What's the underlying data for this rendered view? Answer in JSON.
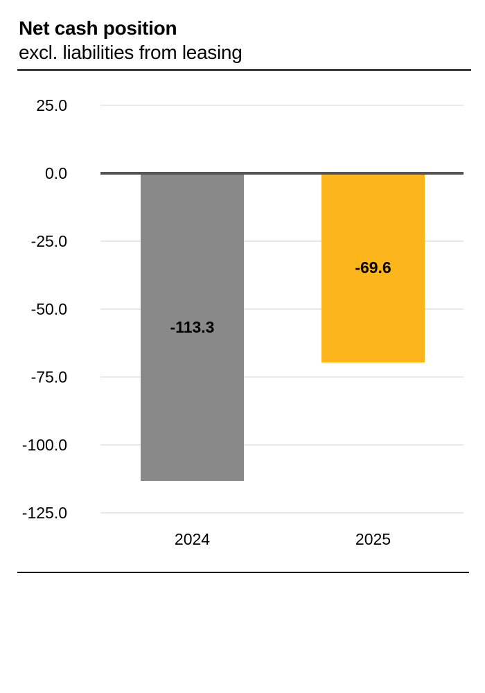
{
  "header": {
    "title": "Net cash position",
    "subtitle": "excl. liabilities from leasing"
  },
  "chart_data": {
    "type": "bar",
    "title": "Net cash position",
    "subtitle": "excl. liabilities from leasing",
    "categories": [
      "2024",
      "2025"
    ],
    "series": [
      {
        "name": "Net cash position",
        "values": [
          -113.3,
          -69.6
        ]
      }
    ],
    "data_labels": [
      "-113.3",
      "-69.6"
    ],
    "bar_colors": [
      "#898989",
      "#fcb61b"
    ],
    "ytick_values": [
      25,
      0,
      -25,
      -50,
      -75,
      -100,
      -125
    ],
    "ytick_labels": [
      "25.0",
      "0.0",
      "-25.0",
      "-50.0",
      "-75.0",
      "-100.0",
      "-125.0"
    ],
    "ylim": [
      -125,
      25
    ],
    "xlabel": "",
    "ylabel": "",
    "grid": true,
    "legend": false,
    "colors": {
      "gridline": "#e8e8e8",
      "zero_line": "#555555",
      "text": "#000000",
      "bar_2024": "#898989",
      "bar_2025": "#fcb61b"
    }
  }
}
